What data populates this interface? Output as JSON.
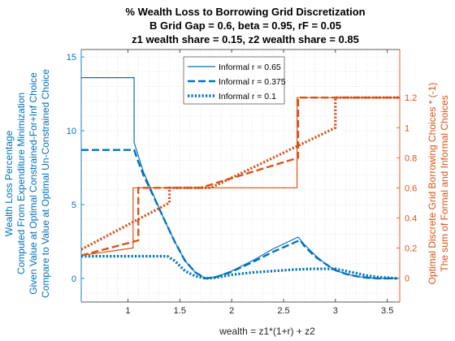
{
  "chart_data": {
    "type": "line",
    "title": [
      "% Wealth Loss to Borrowing Grid Discretization",
      "B Grid Gap = 0.6, beta = 0.95, rF = 0.05",
      "z1 wealth share = 0.15, z2 wealth share = 0.85"
    ],
    "xlabel": "wealth = z1*(1+r) + z2",
    "ylabel_left": [
      "Wealth Loss Percentage",
      "Computed From Expenditure Minimization",
      "Given Value at Optimal Constrained-For+Inf Choice",
      "Compare to Value at Optimal Un-Constrained Choice"
    ],
    "ylabel_right": [
      "Optimal Discrete Grid Borrowing Choices * (-1)",
      "The sum of Formal and Informal Choices"
    ],
    "xlim": [
      0.55,
      3.62
    ],
    "ylim_left": [
      -1.6,
      15.5
    ],
    "ylim_right": [
      -0.16,
      1.52
    ],
    "xticks": [
      "1",
      "1.5",
      "2",
      "2.5",
      "3",
      "3.5"
    ],
    "yticks_left": [
      "0",
      "5",
      "10",
      "15"
    ],
    "yticks_right": [
      "0",
      "0.2",
      "0.4",
      "0.6",
      "0.8",
      "1",
      "1.2"
    ],
    "xtick_values": [
      1,
      1.5,
      2,
      2.5,
      3,
      3.5
    ],
    "ytick_left_values": [
      0,
      5,
      10,
      15
    ],
    "ytick_right_values": [
      0,
      0.2,
      0.4,
      0.6,
      0.8,
      1.0,
      1.2
    ],
    "grid": true,
    "legend_position": "top-center",
    "colors": {
      "left": "#0072BD",
      "right": "#D95319"
    },
    "series": [
      {
        "name": "Informal r = 0.65",
        "axis": "left",
        "style": "solid",
        "x": [
          0.55,
          1.06,
          1.06,
          1.15,
          1.25,
          1.35,
          1.45,
          1.55,
          1.65,
          1.75,
          1.85,
          2.0,
          2.2,
          2.4,
          2.64,
          2.7,
          2.8,
          2.9,
          3.0,
          3.1,
          3.2,
          3.3,
          3.4,
          3.5,
          3.6
        ],
        "y": [
          13.6,
          13.6,
          9.2,
          7.2,
          5.6,
          4.0,
          2.5,
          1.2,
          0.4,
          0.0,
          0.1,
          0.5,
          1.2,
          2.0,
          2.8,
          2.3,
          1.6,
          1.0,
          0.55,
          0.3,
          0.15,
          0.05,
          0.0,
          0.0,
          0.0
        ]
      },
      {
        "name": "Informal r = 0.375",
        "axis": "left",
        "style": "dashed",
        "x": [
          0.55,
          1.06,
          1.1,
          1.15,
          1.25,
          1.35,
          1.45,
          1.55,
          1.65,
          1.75,
          1.85,
          2.0,
          2.2,
          2.4,
          2.66,
          2.7,
          2.8,
          2.9,
          3.0,
          3.1,
          3.2,
          3.3,
          3.4,
          3.5,
          3.6
        ],
        "y": [
          8.7,
          8.7,
          7.9,
          7.0,
          5.5,
          4.0,
          2.5,
          1.2,
          0.4,
          0.0,
          0.1,
          0.45,
          1.1,
          1.8,
          2.6,
          2.2,
          1.5,
          1.0,
          0.55,
          0.3,
          0.15,
          0.05,
          0.0,
          0.0,
          0.0
        ]
      },
      {
        "name": "Informal r = 0.1",
        "axis": "left",
        "style": "dotted",
        "x": [
          0.55,
          1.38,
          1.45,
          1.55,
          1.65,
          1.75,
          1.85,
          2.0,
          2.2,
          2.4,
          2.6,
          2.8,
          3.0,
          3.1,
          3.2,
          3.3,
          3.4,
          3.5,
          3.6
        ],
        "y": [
          1.5,
          1.5,
          1.2,
          0.5,
          0.15,
          0.0,
          0.05,
          0.25,
          0.4,
          0.5,
          0.6,
          0.65,
          0.65,
          0.5,
          0.35,
          0.2,
          0.1,
          0.05,
          0.0
        ]
      },
      {
        "x": [
          0.55,
          1.05,
          1.05,
          1.12,
          1.7,
          2.63,
          2.63,
          2.67,
          3.62
        ],
        "y": [
          0.15,
          0.2,
          0.6,
          0.6,
          0.6,
          0.6,
          1.2,
          1.2,
          1.2
        ],
        "name": "",
        "axis": "right",
        "style": "solid"
      },
      {
        "x": [
          0.55,
          1.1,
          1.1,
          1.15,
          1.4,
          1.7,
          2.64,
          2.64,
          2.7,
          3.62
        ],
        "y": [
          0.15,
          0.25,
          0.6,
          0.6,
          0.6,
          0.6,
          0.8,
          1.2,
          1.2,
          1.2
        ],
        "name": "",
        "axis": "right",
        "style": "dashed"
      },
      {
        "x": [
          0.55,
          1.4,
          1.4,
          1.5,
          1.8,
          3.0,
          3.0,
          3.05,
          3.62
        ],
        "y": [
          0.19,
          0.5,
          0.6,
          0.6,
          0.6,
          1.0,
          1.2,
          1.2,
          1.2
        ],
        "name": "",
        "axis": "right",
        "style": "dotted"
      }
    ]
  }
}
